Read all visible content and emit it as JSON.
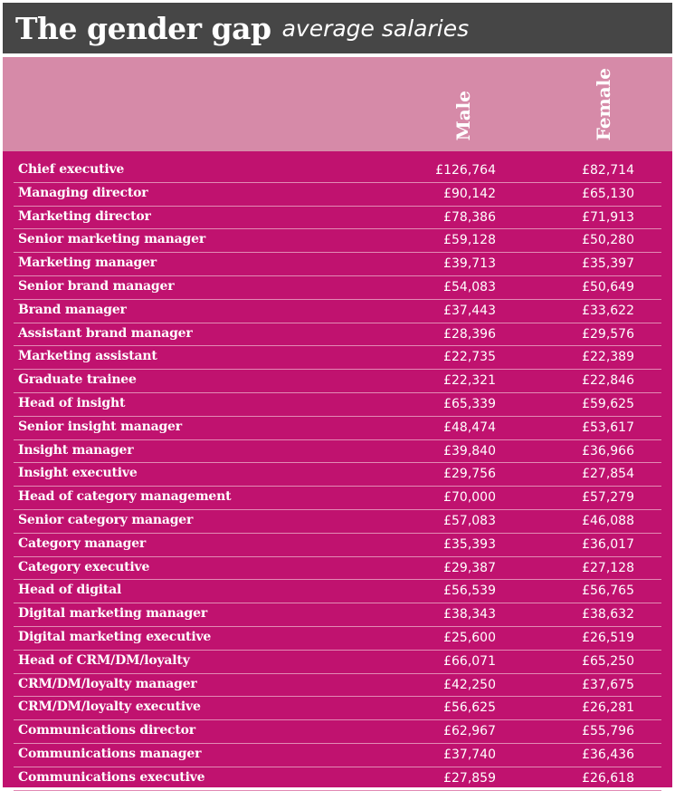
{
  "title": {
    "main": "The gender gap",
    "sub": "average salaries"
  },
  "colors": {
    "title_bg": "#464646",
    "header_bg": "#d68aa8",
    "table_bg": "#c0126f",
    "separator": "#e28ab4",
    "text": "#ffffff"
  },
  "chart_data": {
    "type": "table",
    "title": "The gender gap average salaries",
    "columns": [
      "Male",
      "Female"
    ],
    "rows": [
      {
        "label": "Chief executive",
        "male": "£126,764",
        "female": "£82,714"
      },
      {
        "label": "Managing director",
        "male": "£90,142",
        "female": "£65,130"
      },
      {
        "label": "Marketing director",
        "male": "£78,386",
        "female": "£71,913"
      },
      {
        "label": "Senior marketing manager",
        "male": "£59,128",
        "female": "£50,280"
      },
      {
        "label": "Marketing manager",
        "male": "£39,713",
        "female": "£35,397"
      },
      {
        "label": "Senior brand manager",
        "male": "£54,083",
        "female": "£50,649"
      },
      {
        "label": "Brand manager",
        "male": "£37,443",
        "female": "£33,622"
      },
      {
        "label": "Assistant brand manager",
        "male": "£28,396",
        "female": "£29,576"
      },
      {
        "label": "Marketing assistant",
        "male": "£22,735",
        "female": "£22,389"
      },
      {
        "label": "Graduate trainee",
        "male": "£22,321",
        "female": "£22,846"
      },
      {
        "label": "Head of insight",
        "male": "£65,339",
        "female": "£59,625"
      },
      {
        "label": "Senior insight manager",
        "male": "£48,474",
        "female": "£53,617"
      },
      {
        "label": "Insight manager",
        "male": "£39,840",
        "female": "£36,966"
      },
      {
        "label": "Insight executive",
        "male": "£29,756",
        "female": "£27,854"
      },
      {
        "label": "Head of category management",
        "male": "£70,000",
        "female": "£57,279"
      },
      {
        "label": "Senior category manager",
        "male": "£57,083",
        "female": "£46,088"
      },
      {
        "label": "Category manager",
        "male": "£35,393",
        "female": "£36,017"
      },
      {
        "label": "Category executive",
        "male": "£29,387",
        "female": "£27,128"
      },
      {
        "label": "Head of digital",
        "male": "£56,539",
        "female": "£56,765"
      },
      {
        "label": "Digital marketing manager",
        "male": "£38,343",
        "female": "£38,632"
      },
      {
        "label": "Digital marketing executive",
        "male": "£25,600",
        "female": "£26,519"
      },
      {
        "label": "Head of CRM/DM/loyalty",
        "male": "£66,071",
        "female": "£65,250"
      },
      {
        "label": "CRM/DM/loyalty manager",
        "male": "£42,250",
        "female": "£37,675"
      },
      {
        "label": "CRM/DM/loyalty executive",
        "male": "£56,625",
        "female": "£26,281"
      },
      {
        "label": "Communications director",
        "male": "£62,967",
        "female": "£55,796"
      },
      {
        "label": "Communications manager",
        "male": "£37,740",
        "female": "£36,436"
      },
      {
        "label": "Communications executive",
        "male": "£27,859",
        "female": "£26,618"
      }
    ]
  }
}
